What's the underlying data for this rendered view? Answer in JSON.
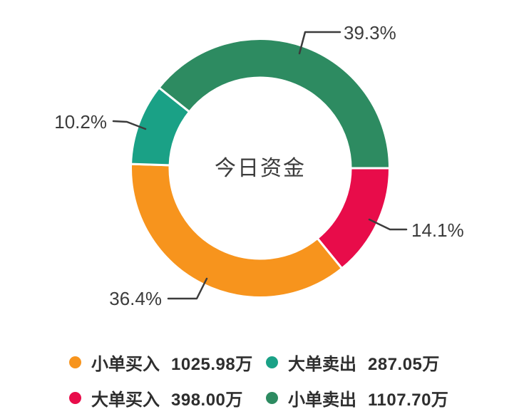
{
  "chart_data": {
    "type": "pie",
    "subtype": "donut",
    "title": "今日资金",
    "unit": "万",
    "total_label_visible": false,
    "legend_position": "bottom",
    "series": [
      {
        "id": "small-order-buy",
        "name": "小单买入",
        "value": 1025.98,
        "value_label": "1025.98万",
        "pct": 36.4,
        "pct_label": "36.4%",
        "color": "#F7941D"
      },
      {
        "id": "large-order-sell",
        "name": "大单卖出",
        "value": 287.05,
        "value_label": "287.05万",
        "pct": 10.2,
        "pct_label": "10.2%",
        "color": "#1AA186"
      },
      {
        "id": "large-order-buy",
        "name": "大单买入",
        "value": 398.0,
        "value_label": "398.00万",
        "pct": 14.1,
        "pct_label": "14.1%",
        "color": "#E80C4A"
      },
      {
        "id": "small-order-sell",
        "name": "小单卖出",
        "value": 1107.7,
        "value_label": "1107.70万",
        "pct": 39.3,
        "pct_label": "39.3%",
        "color": "#2D8B61"
      }
    ],
    "layout": {
      "draw_order": [
        2,
        0,
        1,
        3
      ],
      "start_angle_deg": 0,
      "clockwise": true,
      "segment_border_color": "#FFFFFF",
      "label_line_color": "#3C3C3C",
      "text_color": "#3C3C3C",
      "background": "#FFFFFF"
    }
  }
}
